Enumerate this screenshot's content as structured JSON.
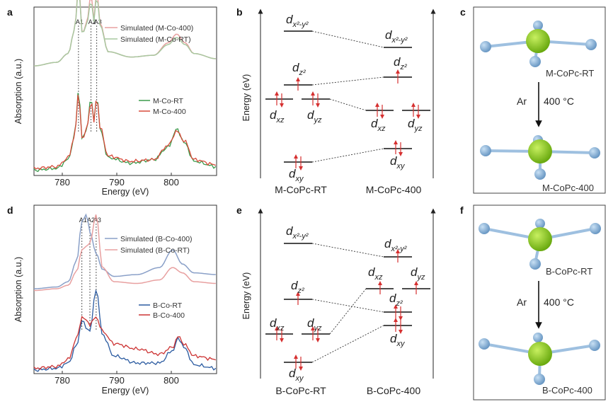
{
  "panels": {
    "a": {
      "label": "a",
      "ylabel": "Absorption (a.u.)",
      "xlabel": "Energy (eV)",
      "ticks": [
        "780",
        "790",
        "800"
      ],
      "peaks": [
        "A1",
        "A2",
        "A3"
      ],
      "legend_sim": [
        "Simulated (M-Co-400)",
        "Simulated (M-Co-RT)"
      ],
      "legend_exp": [
        "M-Co-RT",
        "M-Co-400"
      ]
    },
    "b": {
      "label": "b",
      "ylabel": "Energy (eV)",
      "left_label": "M-CoPc-RT",
      "right_label": "M-CoPc-400"
    },
    "c": {
      "label": "c",
      "top_label": "M-CoPc-RT",
      "bottom_label": "M-CoPc-400",
      "arrow_label": "Ar",
      "temp_label": "400 °C"
    },
    "d": {
      "label": "d",
      "ylabel": "Absorption (a.u.)",
      "xlabel": "Energy (eV)",
      "ticks": [
        "780",
        "790",
        "800"
      ],
      "peaks": [
        "A1",
        "A2",
        "A3"
      ],
      "legend_sim": [
        "Simulated (B-Co-400)",
        "Simulated (B-Co-RT)"
      ],
      "legend_exp": [
        "B-Co-RT",
        "B-Co-400"
      ]
    },
    "e": {
      "label": "e",
      "ylabel": "Energy (eV)",
      "left_label": "B-CoPc-RT",
      "right_label": "B-CoPc-400"
    },
    "f": {
      "label": "f",
      "top_label": "B-CoPc-RT",
      "bottom_label": "B-CoPc-400",
      "arrow_label": "Ar",
      "temp_label": "400 °C"
    }
  },
  "orbitals": {
    "x2y2": "x²-y²",
    "z2": "z²",
    "xz": "xz",
    "yz": "yz",
    "xy": "xy",
    "d": "d"
  },
  "colors": {
    "sim_pink": "#e8a0a0",
    "sim_green": "#a8c8a0",
    "sim_blue": "#8aa0c8",
    "exp_green": "#3a9a4a",
    "exp_red": "#d84a3a",
    "exp_blue": "#2a5aa0",
    "exp_red2": "#cc3333",
    "arrow_red": "#d63030",
    "atom_green": "#8ccc2a",
    "atom_blue": "#8ab4d8"
  },
  "chart_data": [
    {
      "panel": "a",
      "type": "line",
      "xlabel": "Energy (eV)",
      "ylabel": "Absorption (a.u.)",
      "xlim": [
        775,
        807
      ],
      "ticks": [
        780,
        790,
        800
      ],
      "peak_positions": {
        "A1": 782.8,
        "A2": 785,
        "A3": 786
      },
      "series": [
        {
          "name": "Simulated (M-Co-400)",
          "color": "#e8a0a0",
          "group": "sim",
          "offset": 0.56,
          "x": [
            775,
            779,
            781,
            782.1,
            782.8,
            783.5,
            784.2,
            785,
            785.5,
            786,
            786.6,
            788,
            792,
            796,
            798.5,
            800,
            801.5,
            803,
            807
          ],
          "y": [
            0.06,
            0.08,
            0.13,
            0.26,
            0.52,
            0.24,
            0.3,
            0.46,
            0.32,
            0.48,
            0.3,
            0.14,
            0.11,
            0.12,
            0.19,
            0.24,
            0.19,
            0.13,
            0.1
          ]
        },
        {
          "name": "Simulated (M-Co-RT)",
          "color": "#a8c8a0",
          "group": "sim",
          "offset": 0.56,
          "x": [
            775,
            779,
            781,
            782.1,
            782.8,
            783.5,
            784.2,
            785,
            785.5,
            786,
            786.6,
            788,
            792,
            796,
            798.5,
            800,
            801.5,
            803,
            807
          ],
          "y": [
            0.06,
            0.08,
            0.13,
            0.26,
            0.5,
            0.24,
            0.29,
            0.43,
            0.31,
            0.46,
            0.29,
            0.14,
            0.11,
            0.12,
            0.18,
            0.22,
            0.18,
            0.13,
            0.1
          ]
        },
        {
          "name": "M-Co-RT",
          "color": "#3a9a4a",
          "group": "exp",
          "offset": 0.0,
          "x": [
            775,
            779,
            781,
            782.1,
            782.8,
            783.5,
            784.2,
            785,
            785.5,
            786,
            786.6,
            788,
            792,
            796,
            798.5,
            800,
            801.5,
            803,
            807
          ],
          "y": [
            0.03,
            0.04,
            0.09,
            0.22,
            0.48,
            0.2,
            0.26,
            0.44,
            0.3,
            0.46,
            0.26,
            0.1,
            0.07,
            0.09,
            0.16,
            0.26,
            0.18,
            0.08,
            0.05
          ]
        },
        {
          "name": "M-Co-400",
          "color": "#d84a3a",
          "group": "exp",
          "offset": 0.0,
          "x": [
            775,
            779,
            781,
            782.1,
            782.8,
            783.5,
            784.2,
            785,
            785.5,
            786,
            786.6,
            788,
            792,
            796,
            798.5,
            800,
            801.5,
            803,
            807
          ],
          "y": [
            0.04,
            0.05,
            0.1,
            0.22,
            0.46,
            0.2,
            0.26,
            0.42,
            0.3,
            0.45,
            0.27,
            0.11,
            0.08,
            0.09,
            0.17,
            0.25,
            0.19,
            0.09,
            0.06
          ]
        }
      ]
    },
    {
      "panel": "d",
      "type": "line",
      "xlabel": "Energy (eV)",
      "ylabel": "Absorption (a.u.)",
      "xlim": [
        775,
        807
      ],
      "ticks": [
        780,
        790,
        800
      ],
      "peak_positions": {
        "A1": 783.4,
        "A2": 784.8,
        "A3": 785.9
      },
      "series": [
        {
          "name": "Simulated (B-Co-400)",
          "color": "#8aa0c8",
          "group": "sim",
          "offset": 0.44,
          "x": [
            775,
            779,
            781,
            782.5,
            783.4,
            784.2,
            784.8,
            785.9,
            787,
            789,
            793,
            797,
            799.3,
            801,
            803,
            807
          ],
          "y": [
            0.04,
            0.05,
            0.08,
            0.2,
            0.42,
            0.46,
            0.36,
            0.24,
            0.15,
            0.11,
            0.12,
            0.16,
            0.26,
            0.18,
            0.13,
            0.12
          ]
        },
        {
          "name": "Simulated (B-Co-RT)",
          "color": "#e8a0a0",
          "group": "sim",
          "offset": 0.44,
          "x": [
            775,
            779,
            781,
            782.5,
            783.4,
            784.2,
            784.8,
            785.9,
            787,
            789,
            793,
            797,
            799.3,
            801,
            803,
            807
          ],
          "y": [
            0.03,
            0.04,
            0.06,
            0.14,
            0.26,
            0.28,
            0.3,
            0.46,
            0.16,
            0.08,
            0.07,
            0.09,
            0.16,
            0.13,
            0.08,
            0.07
          ]
        },
        {
          "name": "B-Co-RT",
          "color": "#2a5aa0",
          "group": "exp",
          "offset": 0.0,
          "x": [
            775,
            779,
            781,
            782.5,
            783.4,
            784.2,
            784.8,
            785.9,
            787,
            789,
            793,
            797,
            799.3,
            800.3,
            801.5,
            803,
            807
          ],
          "y": [
            0.02,
            0.03,
            0.06,
            0.16,
            0.3,
            0.26,
            0.24,
            0.48,
            0.22,
            0.1,
            0.06,
            0.06,
            0.13,
            0.2,
            0.14,
            0.05,
            0.03
          ]
        },
        {
          "name": "B-Co-400",
          "color": "#cc3333",
          "group": "exp",
          "offset": 0.0,
          "x": [
            775,
            779,
            781,
            782.5,
            783.4,
            784.2,
            784.8,
            785.9,
            787,
            789,
            793,
            797,
            799.3,
            800.3,
            801.5,
            803,
            807
          ],
          "y": [
            0.03,
            0.04,
            0.08,
            0.2,
            0.32,
            0.3,
            0.28,
            0.32,
            0.24,
            0.17,
            0.14,
            0.11,
            0.15,
            0.21,
            0.16,
            0.1,
            0.08
          ]
        }
      ]
    }
  ]
}
